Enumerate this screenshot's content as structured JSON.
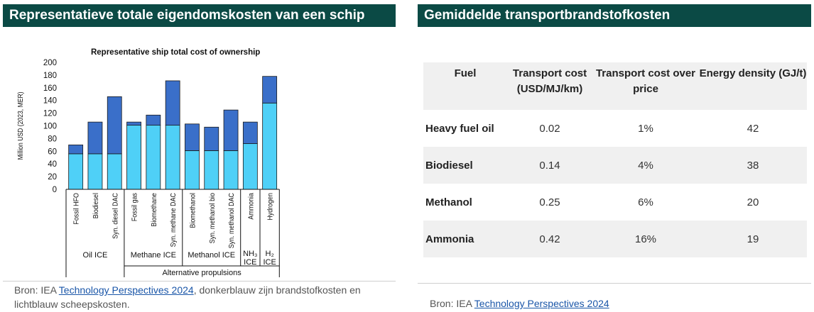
{
  "left_panel": {
    "title": "Representatieve totale eigendomskosten van een schip",
    "source_prefix": "Bron: IEA ",
    "source_link": "Technology Perspectives 2024",
    "source_suffix": ", donkerblauw zijn brandstofkosten en lichtblauw scheepskosten."
  },
  "right_panel": {
    "title": "Gemiddelde transportbrandstofkosten",
    "source_prefix": "Bron:  IEA ",
    "source_link": "Technology Perspectives 2024"
  },
  "colors": {
    "header_bg": "#0b4a45",
    "fuel_cost": "#3a6fc9",
    "ship_cost": "#4fd0f7"
  },
  "chart_data": {
    "type": "bar",
    "stacked": true,
    "title": "Representative ship total cost of ownership",
    "ylabel": "Million USD (2023, MER)",
    "ylim": [
      0,
      200
    ],
    "yticks": [
      0,
      20,
      40,
      60,
      80,
      100,
      120,
      140,
      160,
      180,
      200
    ],
    "categories": [
      "Fossil HFO",
      "Biodiesel",
      "Syn. diesel DAC",
      "Fossil gas",
      "Biomethane",
      "Syn. methane DAC",
      "Biomethanol",
      "Syn. methanol bio",
      "Syn. methanol DAC",
      "Ammonia",
      "Hydrogen"
    ],
    "series": [
      {
        "values": [
          56,
          56,
          56,
          101,
          101,
          101,
          61,
          61,
          61,
          72,
          136
        ]
      },
      {
        "values": [
          14,
          50,
          90,
          5,
          16,
          70,
          42,
          37,
          64,
          34,
          42
        ]
      }
    ],
    "groups": [
      {
        "label": "Oil ICE",
        "start": 0,
        "end": 2
      },
      {
        "label": "Methane ICE",
        "start": 3,
        "end": 5
      },
      {
        "label": "Methanol ICE",
        "start": 6,
        "end": 8
      },
      {
        "label": "NH₃ ICE",
        "start": 9,
        "end": 9
      },
      {
        "label": "H₂ ICE",
        "start": 10,
        "end": 10
      }
    ],
    "supergroup": {
      "label": "Alternative propulsions",
      "start": 3,
      "end": 10
    }
  },
  "table": {
    "headers": [
      "Fuel",
      "Transport cost (USD/MJ/km)",
      "Transport cost over price",
      "Energy density (GJ/t)"
    ],
    "rows": [
      [
        "Heavy fuel oil",
        "0.02",
        "1%",
        "42"
      ],
      [
        "Biodiesel",
        "0.14",
        "4%",
        "38"
      ],
      [
        "Methanol",
        "0.25",
        "6%",
        "20"
      ],
      [
        "Ammonia",
        "0.42",
        "16%",
        "19"
      ]
    ]
  }
}
